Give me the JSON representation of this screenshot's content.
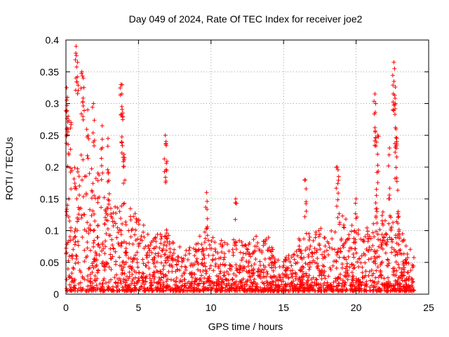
{
  "chart_data": {
    "type": "scatter",
    "title": "Day 049 of 2024, Rate Of TEC Index for receiver joe2",
    "xlabel": "GPS time / hours",
    "ylabel": "ROTI / TECUs",
    "xlim": [
      0,
      25
    ],
    "ylim": [
      0,
      0.4
    ],
    "xticks": [
      0,
      5,
      10,
      15,
      20,
      25
    ],
    "xtick_labels": [
      "0",
      "5",
      "10",
      "15",
      "20",
      "25"
    ],
    "yticks": [
      0,
      0.05,
      0.1,
      0.15,
      0.2,
      0.25,
      0.3,
      0.35,
      0.4
    ],
    "ytick_labels": [
      "0",
      "0.05",
      "0.1",
      "0.15",
      "0.2",
      "0.25",
      "0.3",
      "0.35",
      "0.4"
    ],
    "grid": true,
    "marker": "+",
    "color": "#ff0000",
    "envelope": [
      [
        0.0,
        0.32
      ],
      [
        0.5,
        0.24
      ],
      [
        1.0,
        0.22
      ],
      [
        1.5,
        0.2
      ],
      [
        2.0,
        0.21
      ],
      [
        2.5,
        0.18
      ],
      [
        3.0,
        0.16
      ],
      [
        3.5,
        0.16
      ],
      [
        4.0,
        0.14
      ],
      [
        4.5,
        0.13
      ],
      [
        5.0,
        0.12
      ],
      [
        5.5,
        0.1
      ],
      [
        6.0,
        0.09
      ],
      [
        6.5,
        0.09
      ],
      [
        7.0,
        0.1
      ],
      [
        7.5,
        0.08
      ],
      [
        8.0,
        0.07
      ],
      [
        8.5,
        0.07
      ],
      [
        9.0,
        0.08
      ],
      [
        9.5,
        0.11
      ],
      [
        10.0,
        0.09
      ],
      [
        10.5,
        0.08
      ],
      [
        11.0,
        0.08
      ],
      [
        11.5,
        0.09
      ],
      [
        12.0,
        0.08
      ],
      [
        12.5,
        0.07
      ],
      [
        13.0,
        0.09
      ],
      [
        13.5,
        0.08
      ],
      [
        14.0,
        0.09
      ],
      [
        14.5,
        0.05
      ],
      [
        15.0,
        0.05
      ],
      [
        15.5,
        0.06
      ],
      [
        16.0,
        0.08
      ],
      [
        16.5,
        0.1
      ],
      [
        17.0,
        0.09
      ],
      [
        17.5,
        0.1
      ],
      [
        18.0,
        0.09
      ],
      [
        18.5,
        0.1
      ],
      [
        19.0,
        0.12
      ],
      [
        19.5,
        0.11
      ],
      [
        20.0,
        0.1
      ],
      [
        20.5,
        0.1
      ],
      [
        21.0,
        0.1
      ],
      [
        21.5,
        0.14
      ],
      [
        22.0,
        0.12
      ],
      [
        22.5,
        0.14
      ],
      [
        23.0,
        0.1
      ],
      [
        23.5,
        0.08
      ],
      [
        24.0,
        0.06
      ]
    ],
    "peaks": [
      [
        0.05,
        0.325
      ],
      [
        0.1,
        0.31
      ],
      [
        0.15,
        0.28
      ],
      [
        0.35,
        0.27
      ],
      [
        0.7,
        0.39
      ],
      [
        0.8,
        0.365
      ],
      [
        1.1,
        0.35
      ],
      [
        1.2,
        0.34
      ],
      [
        1.5,
        0.29
      ],
      [
        1.9,
        0.3
      ],
      [
        2.5,
        0.265
      ],
      [
        2.9,
        0.245
      ],
      [
        3.8,
        0.33
      ],
      [
        3.85,
        0.315
      ],
      [
        3.9,
        0.28
      ],
      [
        4.0,
        0.22
      ],
      [
        6.85,
        0.25
      ],
      [
        6.9,
        0.24
      ],
      [
        9.7,
        0.16
      ],
      [
        11.7,
        0.15
      ],
      [
        16.5,
        0.18
      ],
      [
        18.7,
        0.2
      ],
      [
        18.8,
        0.185
      ],
      [
        20.0,
        0.15
      ],
      [
        21.3,
        0.315
      ],
      [
        21.35,
        0.3
      ],
      [
        21.5,
        0.25
      ],
      [
        22.3,
        0.23
      ],
      [
        22.6,
        0.365
      ],
      [
        22.65,
        0.355
      ],
      [
        22.7,
        0.3
      ],
      [
        22.75,
        0.26
      ],
      [
        22.8,
        0.24
      ],
      [
        21.4,
        0.165
      ],
      [
        22.9,
        0.13
      ]
    ]
  }
}
